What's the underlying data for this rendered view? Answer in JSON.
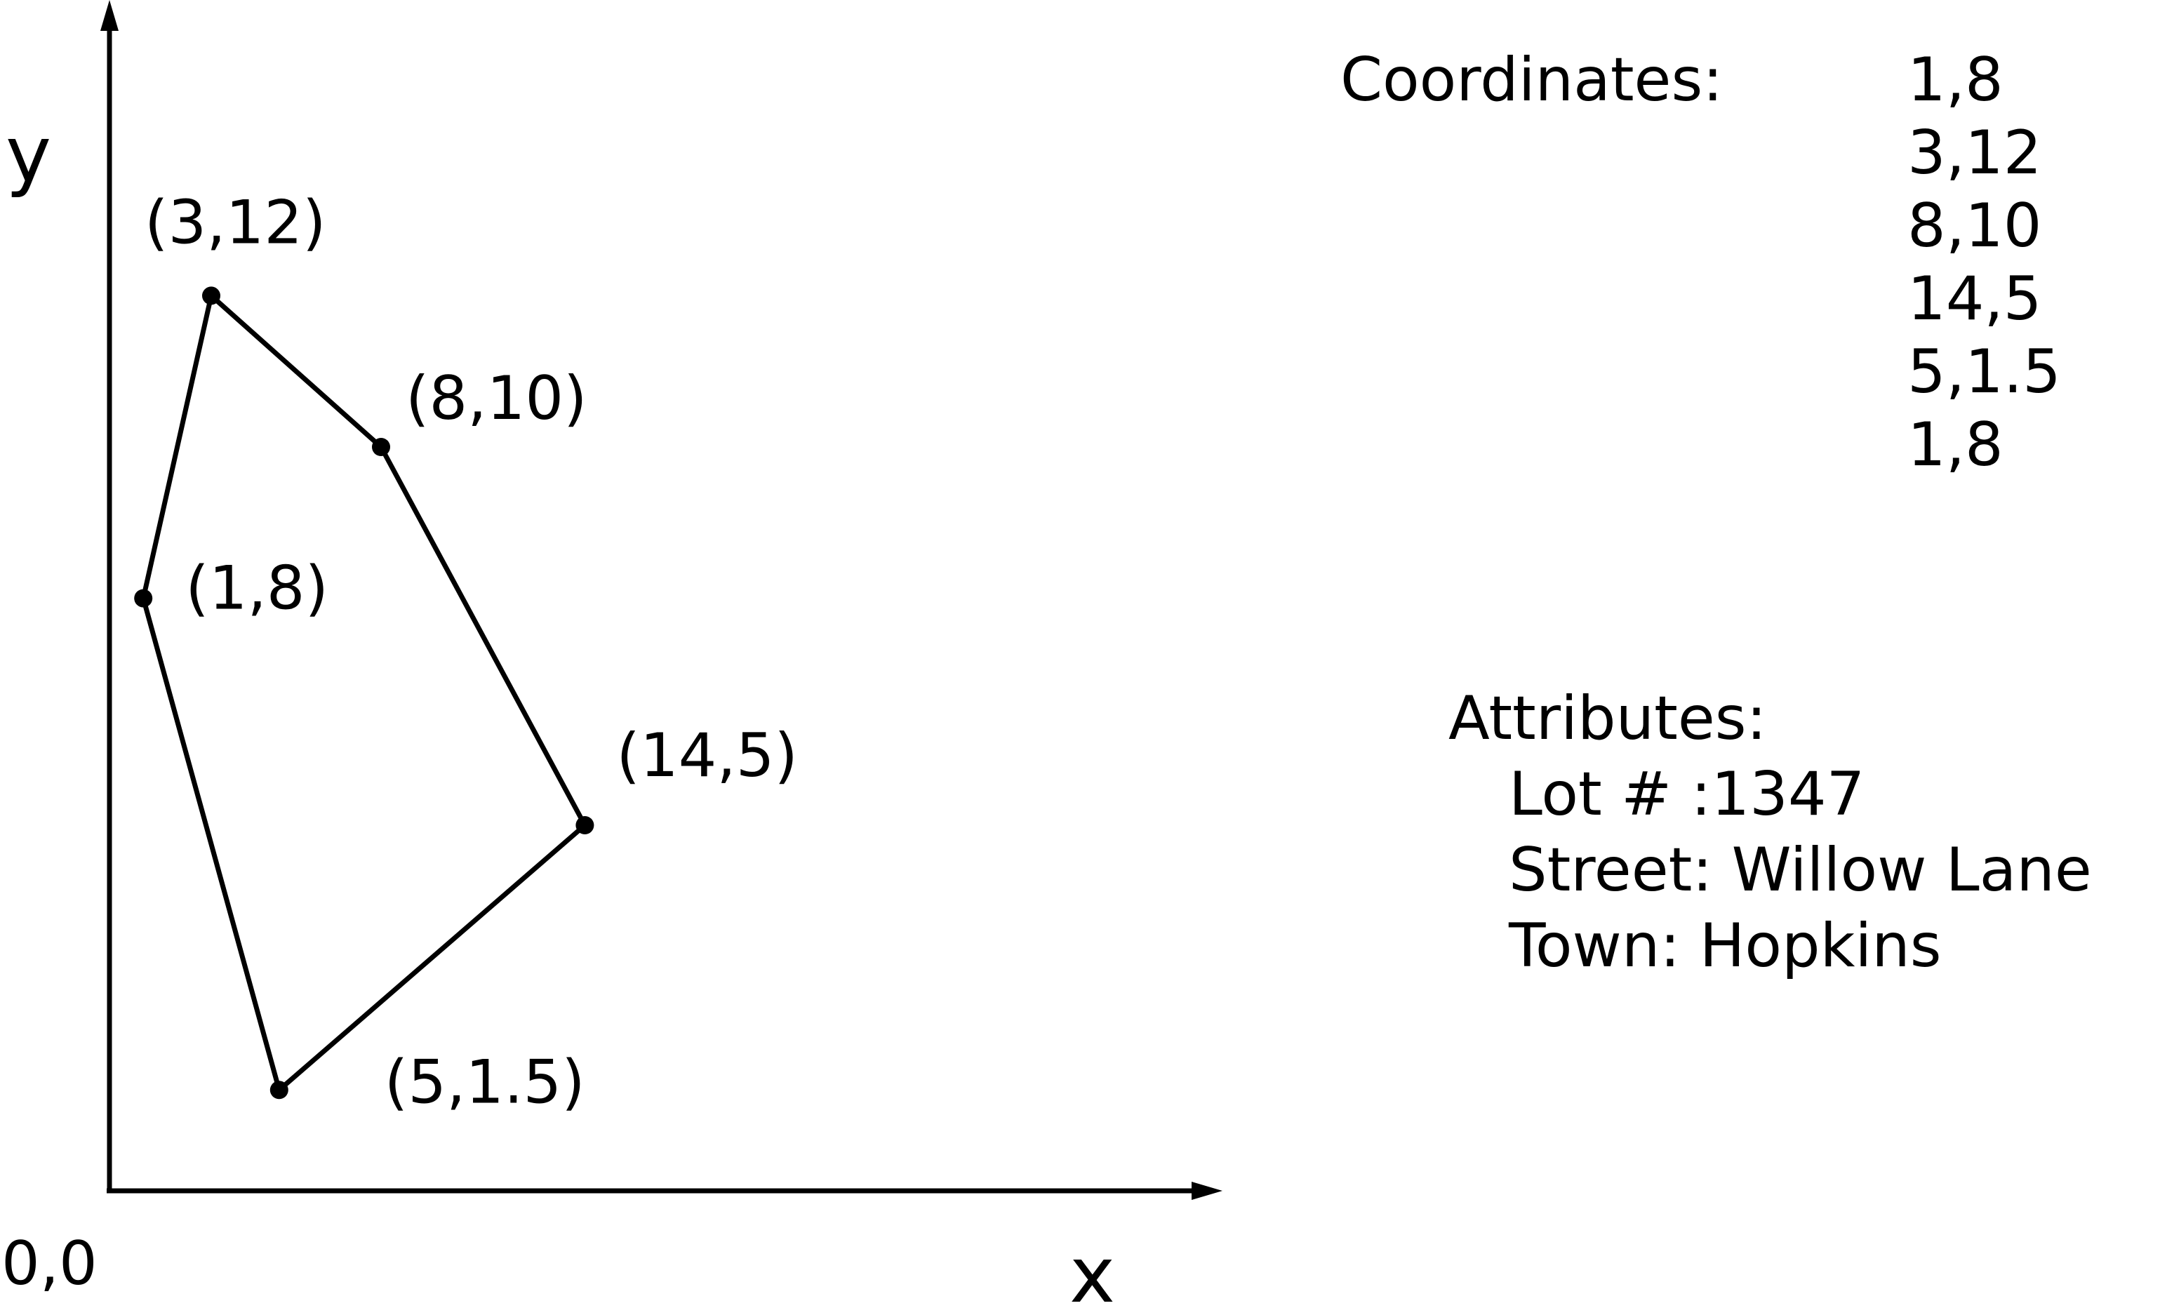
{
  "axes": {
    "y_label": "y",
    "x_label": "x",
    "origin_label": "0,0"
  },
  "chart_data": {
    "type": "polygon",
    "title": "",
    "xlabel": "x",
    "ylabel": "y",
    "xlim": [
      0,
      15.5
    ],
    "ylim": [
      0,
      13.8
    ],
    "vertices": [
      {
        "x": 1,
        "y": 8,
        "label": "(1,8)"
      },
      {
        "x": 3,
        "y": 12,
        "label": "(3,12)"
      },
      {
        "x": 8,
        "y": 10,
        "label": "(8,10)"
      },
      {
        "x": 14,
        "y": 5,
        "label": "(14,5)"
      },
      {
        "x": 5,
        "y": 1.5,
        "label": "(5,1.5)"
      }
    ],
    "closed": true
  },
  "coordinates": {
    "title": "Coordinates:",
    "list": [
      "1,8",
      "3,12",
      "8,10",
      "14,5",
      "5,1.5",
      "1,8"
    ]
  },
  "attributes": {
    "title": "Attributes:",
    "lot": "Lot # :1347",
    "street": "Street: Willow Lane",
    "town": "Town: Hopkins"
  },
  "colors": {
    "ink": "#000000",
    "background": "#ffffff"
  }
}
